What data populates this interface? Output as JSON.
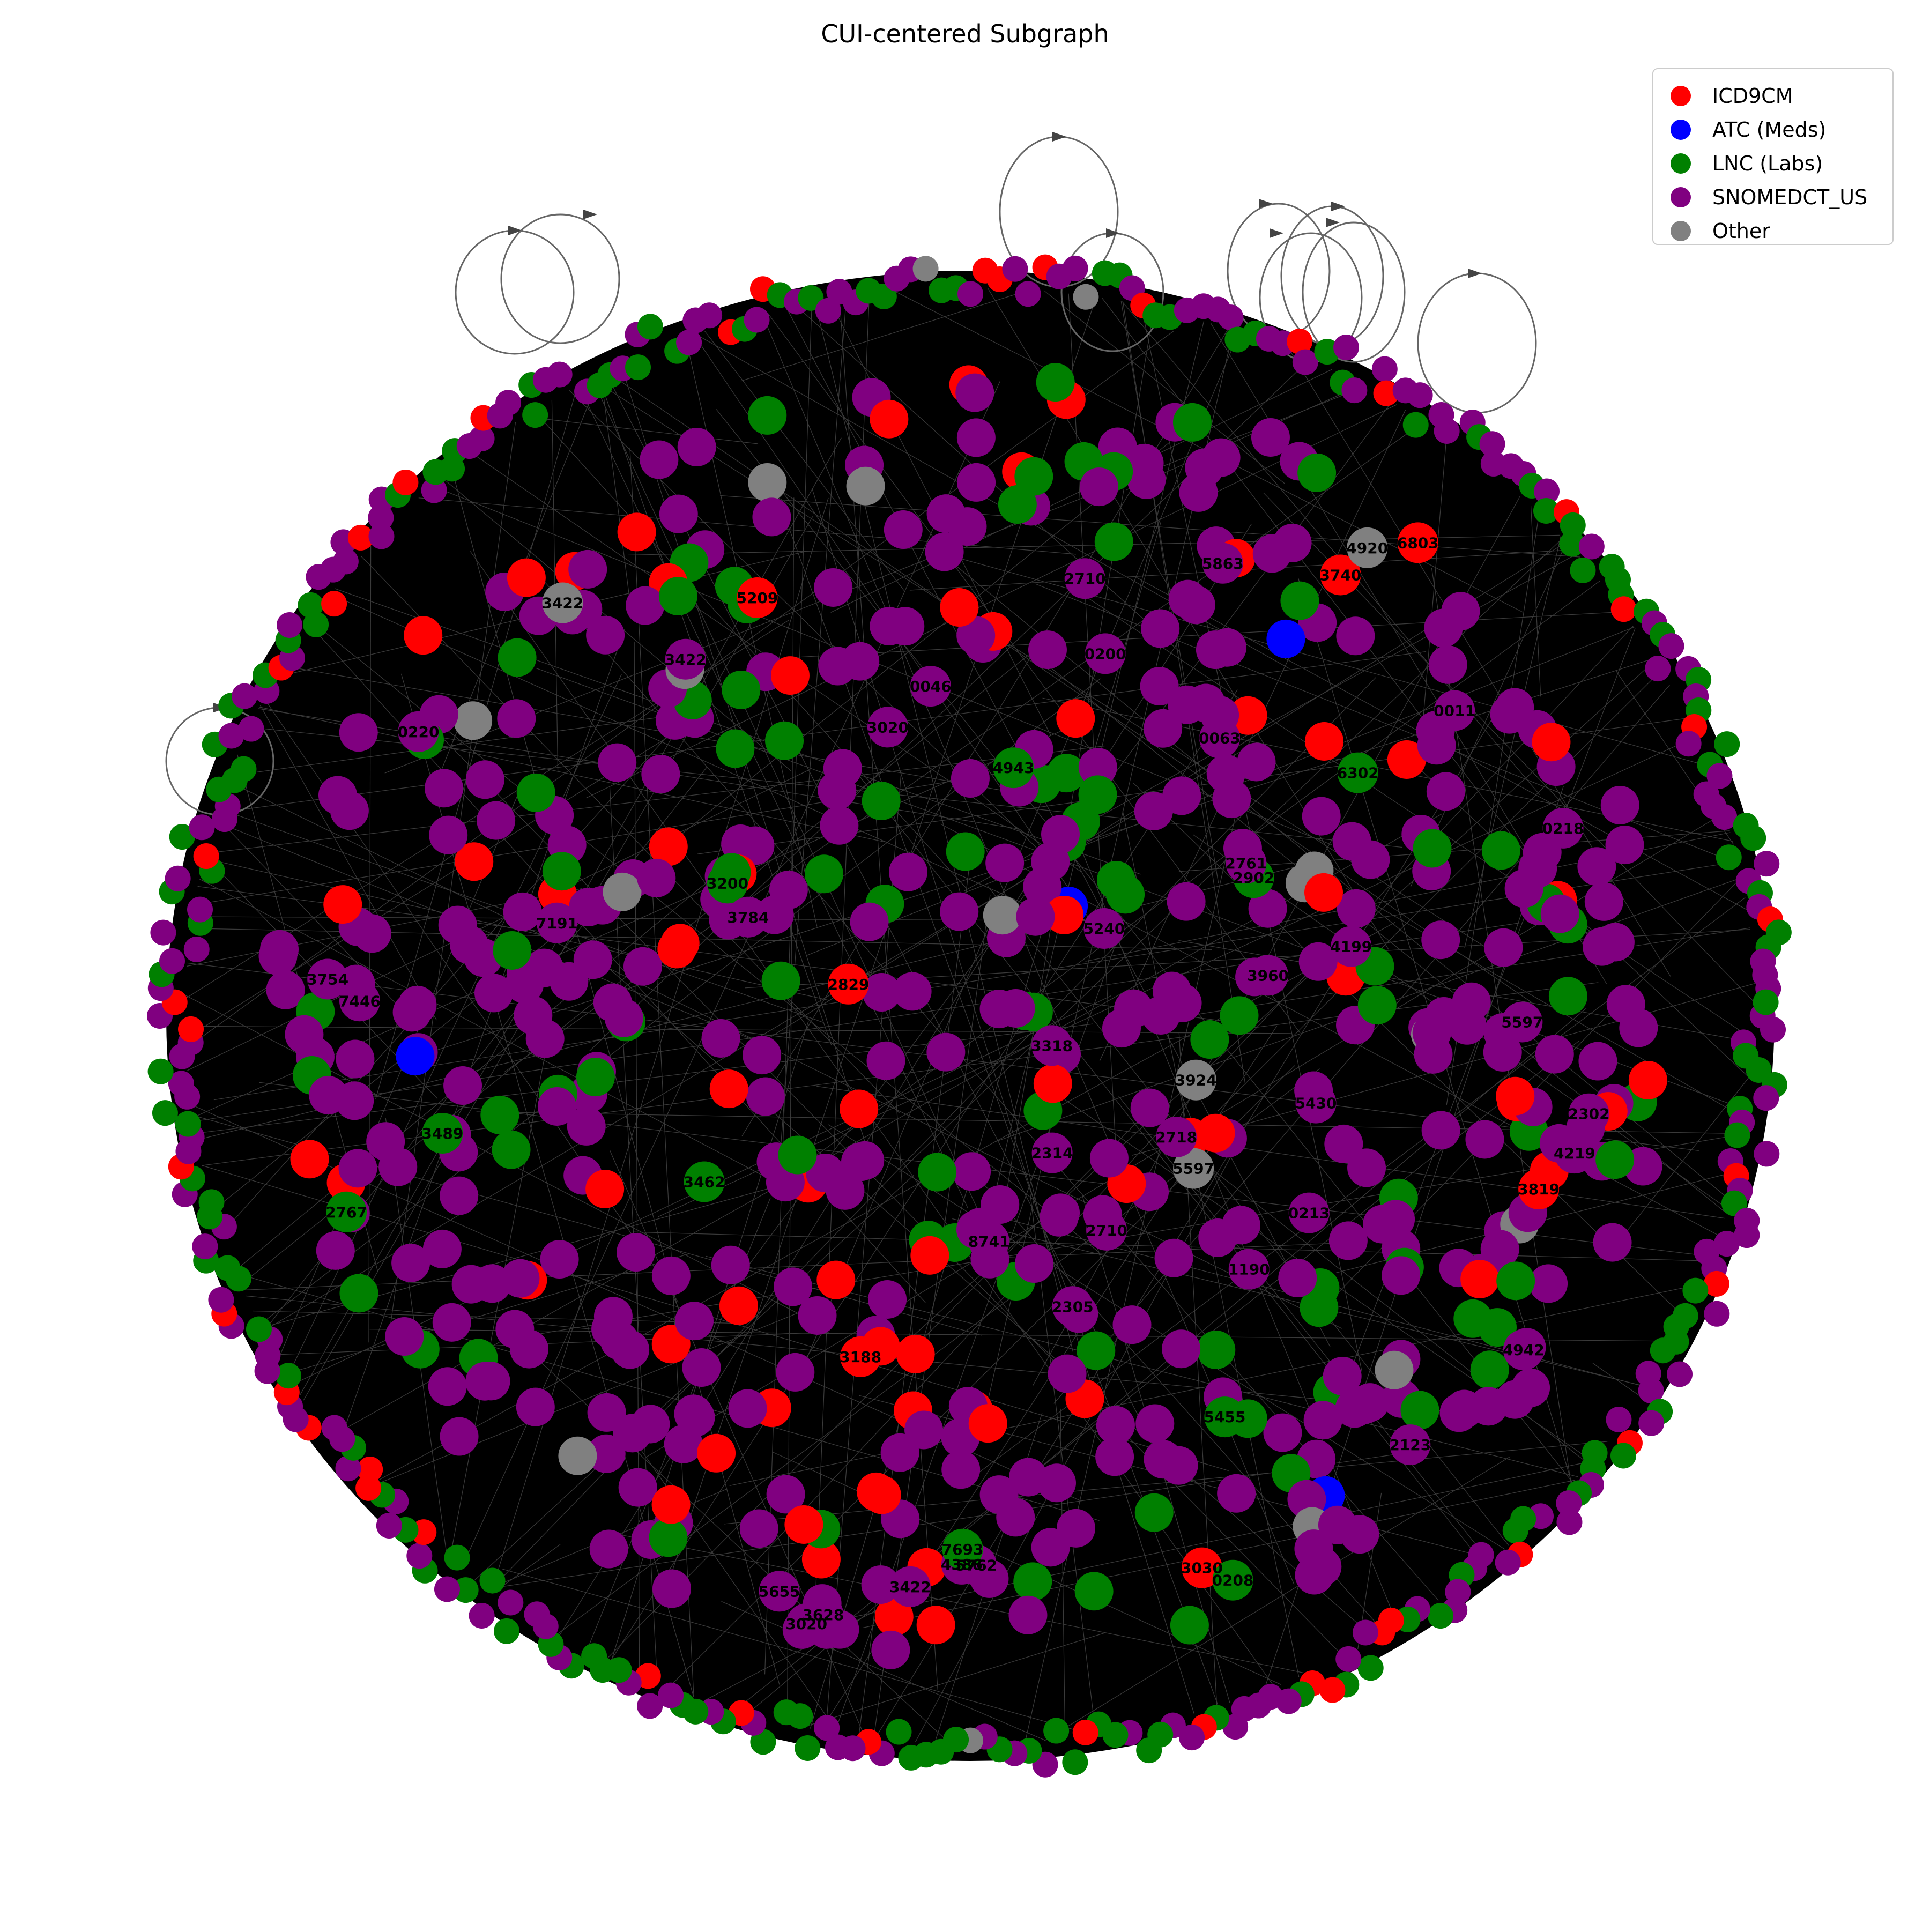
{
  "title": "CUI-centered Subgraph",
  "legend": [
    {
      "label": "ICD9CM",
      "color": "#ff0000"
    },
    {
      "label": "ATC (Meds)",
      "color": "#0000ff"
    },
    {
      "label": "LNC (Labs)",
      "color": "#008000"
    },
    {
      "label": "SNOMEDCT_US",
      "color": "#800080"
    },
    {
      "label": "Other",
      "color": "#808080"
    }
  ],
  "graph": {
    "layout": "dense cluster of nodes inside a black tangle of edges; ring of overlapping labels around the edge",
    "edge_color": "#000000",
    "self_loop_color": "#666666",
    "interior_node_labels": [
      "3740",
      "8741",
      "0218",
      "3422",
      "4386",
      "2902",
      "5762",
      "4219",
      "4942",
      "3819",
      "2767",
      "5597",
      "2302",
      "3924",
      "7191",
      "6302",
      "5655",
      "5430",
      "3030",
      "1190",
      "3489",
      "2314",
      "5240",
      "0063",
      "3318",
      "4943",
      "5597",
      "6803",
      "2305",
      "0046",
      "3462",
      "3422",
      "0200",
      "2710",
      "3020",
      "3200",
      "5209",
      "3960",
      "3754",
      "3422",
      "0208",
      "2710",
      "0213",
      "2718",
      "3784",
      "3188",
      "7446",
      "2761",
      "5863",
      "0011",
      "7693",
      "3020",
      "4920",
      "3628",
      "2829",
      "5455",
      "0220",
      "4199",
      "2123"
    ]
  }
}
